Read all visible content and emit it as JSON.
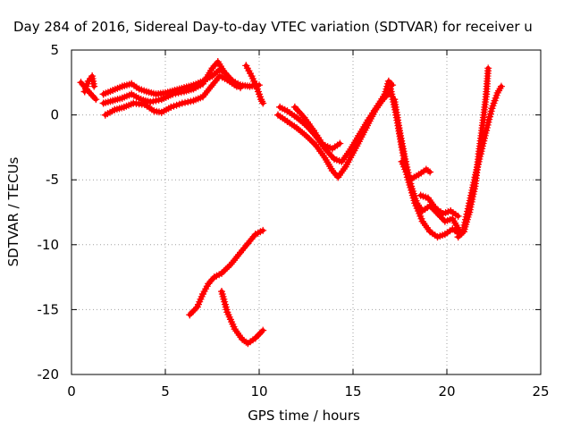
{
  "chart_data": {
    "type": "scatter",
    "title": "Day 284 of 2016, Sidereal Day-to-day VTEC variation (SDTVAR) for receiver u",
    "xlabel": "GPS time / hours",
    "ylabel": "SDTVAR / TECUs",
    "xlim": [
      0,
      25
    ],
    "ylim": [
      -20,
      5
    ],
    "xticks": [
      0,
      5,
      10,
      15,
      20,
      25
    ],
    "yticks": [
      5,
      0,
      -5,
      -10,
      -15,
      -20
    ],
    "grid": true,
    "marker": "plus",
    "color": "#ff0000",
    "series": [
      {
        "values": [
          [
            0.5,
            2.5
          ],
          [
            0.8,
            2.0
          ],
          [
            1.1,
            1.5
          ],
          [
            1.3,
            1.2
          ]
        ]
      },
      {
        "values": [
          [
            0.7,
            1.8
          ],
          [
            0.9,
            2.6
          ],
          [
            1.1,
            3.0
          ],
          [
            1.2,
            2.2
          ]
        ]
      },
      {
        "values": [
          [
            1.7,
            1.6
          ],
          [
            2.2,
            1.9
          ],
          [
            2.7,
            2.2
          ],
          [
            3.2,
            2.4
          ],
          [
            3.6,
            2.0
          ],
          [
            4.0,
            1.8
          ],
          [
            4.5,
            1.6
          ],
          [
            5.0,
            1.7
          ],
          [
            5.5,
            1.9
          ],
          [
            6.0,
            2.1
          ],
          [
            6.5,
            2.3
          ],
          [
            7.0,
            2.6
          ],
          [
            7.5,
            3.0
          ],
          [
            7.9,
            3.5
          ],
          [
            8.2,
            3.2
          ],
          [
            8.6,
            2.6
          ],
          [
            9.0,
            2.3
          ],
          [
            9.5,
            2.2
          ],
          [
            10.0,
            2.3
          ]
        ]
      },
      {
        "values": [
          [
            1.7,
            0.9
          ],
          [
            2.2,
            1.1
          ],
          [
            2.7,
            1.3
          ],
          [
            3.2,
            1.6
          ],
          [
            3.7,
            1.2
          ],
          [
            4.2,
            1.0
          ],
          [
            4.8,
            1.2
          ],
          [
            5.4,
            1.6
          ],
          [
            6.0,
            1.8
          ],
          [
            6.5,
            2.0
          ],
          [
            7.0,
            2.4
          ],
          [
            7.5,
            3.6
          ],
          [
            7.8,
            4.1
          ],
          [
            8.1,
            3.4
          ],
          [
            8.5,
            2.6
          ],
          [
            9.0,
            2.1
          ]
        ]
      },
      {
        "values": [
          [
            1.8,
            0.0
          ],
          [
            2.3,
            0.4
          ],
          [
            2.8,
            0.6
          ],
          [
            3.3,
            0.9
          ],
          [
            3.9,
            0.8
          ],
          [
            4.4,
            0.3
          ],
          [
            4.8,
            0.2
          ],
          [
            5.3,
            0.6
          ],
          [
            5.9,
            0.9
          ],
          [
            6.5,
            1.1
          ],
          [
            7.0,
            1.4
          ],
          [
            7.5,
            2.3
          ],
          [
            7.9,
            3.0
          ],
          [
            8.3,
            2.7
          ],
          [
            8.8,
            2.2
          ]
        ]
      },
      {
        "values": [
          [
            9.3,
            3.8
          ],
          [
            9.6,
            3.0
          ],
          [
            9.9,
            2.0
          ],
          [
            10.1,
            1.2
          ],
          [
            10.2,
            0.9
          ]
        ]
      },
      {
        "values": [
          [
            6.3,
            -15.4
          ],
          [
            6.7,
            -14.8
          ],
          [
            7.0,
            -13.8
          ],
          [
            7.3,
            -13.0
          ],
          [
            7.6,
            -12.5
          ],
          [
            8.0,
            -12.2
          ],
          [
            8.5,
            -11.5
          ],
          [
            9.0,
            -10.6
          ],
          [
            9.4,
            -9.9
          ],
          [
            9.8,
            -9.2
          ],
          [
            10.2,
            -8.9
          ]
        ]
      },
      {
        "values": [
          [
            8.0,
            -13.6
          ],
          [
            8.3,
            -15.2
          ],
          [
            8.7,
            -16.5
          ],
          [
            9.1,
            -17.3
          ],
          [
            9.4,
            -17.6
          ],
          [
            9.8,
            -17.2
          ],
          [
            10.2,
            -16.6
          ]
        ]
      },
      {
        "values": [
          [
            11.1,
            0.6
          ],
          [
            11.5,
            0.3
          ],
          [
            12.0,
            -0.2
          ],
          [
            12.5,
            -0.8
          ],
          [
            13.0,
            -1.6
          ],
          [
            13.5,
            -2.6
          ],
          [
            14.0,
            -3.4
          ],
          [
            14.4,
            -3.6
          ],
          [
            14.8,
            -2.8
          ],
          [
            15.3,
            -1.6
          ],
          [
            15.8,
            -0.4
          ],
          [
            16.3,
            0.7
          ],
          [
            16.7,
            1.6
          ],
          [
            16.9,
            2.6
          ],
          [
            17.1,
            2.3
          ]
        ]
      },
      {
        "values": [
          [
            11.0,
            0.0
          ],
          [
            11.5,
            -0.5
          ],
          [
            12.0,
            -1.0
          ],
          [
            12.5,
            -1.6
          ],
          [
            13.0,
            -2.3
          ],
          [
            13.5,
            -3.3
          ],
          [
            13.9,
            -4.3
          ],
          [
            14.2,
            -4.8
          ],
          [
            14.6,
            -4.0
          ],
          [
            15.2,
            -2.4
          ],
          [
            15.7,
            -1.0
          ],
          [
            16.2,
            0.4
          ],
          [
            16.6,
            1.2
          ],
          [
            17.0,
            1.8
          ]
        ]
      },
      {
        "values": [
          [
            11.9,
            0.6
          ],
          [
            12.4,
            -0.2
          ],
          [
            12.9,
            -1.2
          ],
          [
            13.4,
            -2.3
          ],
          [
            13.9,
            -2.6
          ],
          [
            14.3,
            -2.2
          ]
        ]
      },
      {
        "values": [
          [
            17.0,
            2.0
          ],
          [
            17.3,
            0.0
          ],
          [
            17.6,
            -2.5
          ],
          [
            17.9,
            -4.8
          ],
          [
            18.3,
            -6.8
          ],
          [
            18.7,
            -8.2
          ],
          [
            19.1,
            -9.0
          ],
          [
            19.5,
            -9.4
          ],
          [
            19.9,
            -9.2
          ],
          [
            20.3,
            -8.8
          ],
          [
            20.7,
            -9.2
          ]
        ]
      },
      {
        "values": [
          [
            17.2,
            1.2
          ],
          [
            17.5,
            -1.4
          ],
          [
            17.8,
            -3.6
          ],
          [
            18.1,
            -5.5
          ],
          [
            18.4,
            -6.8
          ],
          [
            18.7,
            -7.4
          ],
          [
            19.1,
            -7.0
          ],
          [
            19.5,
            -7.6
          ],
          [
            19.9,
            -8.2
          ],
          [
            20.3,
            -8.0
          ],
          [
            20.7,
            -9.0
          ]
        ]
      },
      {
        "values": [
          [
            17.6,
            -3.6
          ],
          [
            18.0,
            -5.0
          ],
          [
            18.5,
            -4.6
          ],
          [
            18.9,
            -4.2
          ],
          [
            19.1,
            -4.4
          ]
        ]
      },
      {
        "values": [
          [
            18.6,
            -6.2
          ],
          [
            19.0,
            -6.4
          ],
          [
            19.4,
            -7.2
          ],
          [
            19.8,
            -7.6
          ],
          [
            20.2,
            -7.4
          ],
          [
            20.6,
            -7.8
          ]
        ]
      },
      {
        "values": [
          [
            20.6,
            -9.4
          ],
          [
            20.9,
            -9.0
          ],
          [
            21.2,
            -7.5
          ],
          [
            21.5,
            -5.5
          ],
          [
            21.7,
            -3.0
          ],
          [
            21.9,
            -0.8
          ],
          [
            22.1,
            1.6
          ],
          [
            22.2,
            3.6
          ]
        ]
      },
      {
        "values": [
          [
            20.9,
            -8.7
          ],
          [
            21.2,
            -6.8
          ],
          [
            21.5,
            -4.8
          ],
          [
            21.8,
            -3.0
          ],
          [
            22.1,
            -1.2
          ],
          [
            22.4,
            0.5
          ],
          [
            22.7,
            1.7
          ],
          [
            22.9,
            2.2
          ]
        ]
      }
    ]
  }
}
